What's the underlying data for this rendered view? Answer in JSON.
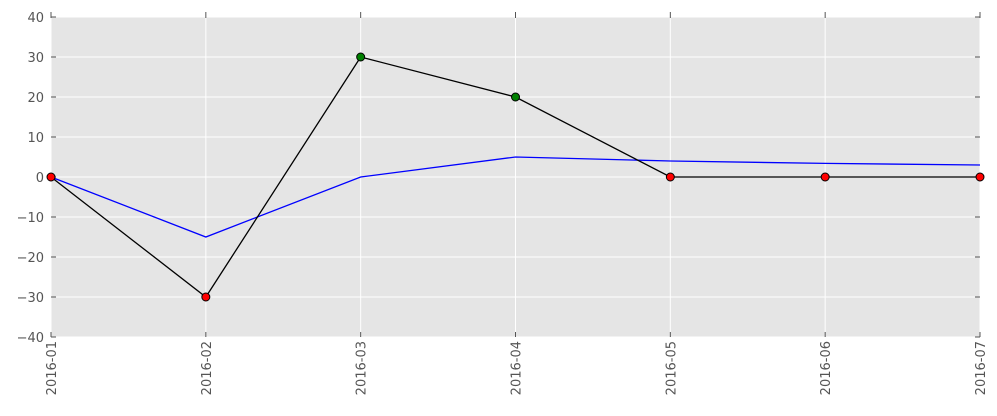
{
  "chart_data": {
    "type": "line",
    "x": [
      "2016-01",
      "2016-02",
      "2016-03",
      "2016-04",
      "2016-05",
      "2016-06",
      "2016-07"
    ],
    "ylim": [
      -40,
      40
    ],
    "yticks": [
      "−40",
      "−30",
      "−20",
      "−10",
      "0",
      "10",
      "20",
      "30",
      "40"
    ],
    "grid": true,
    "series": [
      {
        "values": [
          0,
          -15,
          0,
          5,
          4,
          3.4,
          3
        ],
        "color": "#0000ff",
        "markers": false
      },
      {
        "values": [
          0,
          -30,
          30,
          20,
          0,
          0,
          0
        ],
        "color": "#000000",
        "markers": true,
        "marker_colors": [
          "#ff0000",
          "#ff0000",
          "#008000",
          "#008000",
          "#ff0000",
          "#ff0000",
          "#ff0000"
        ]
      }
    ],
    "colors": {
      "plot_background": "#e5e5e5",
      "grid": "#ffffff"
    }
  }
}
